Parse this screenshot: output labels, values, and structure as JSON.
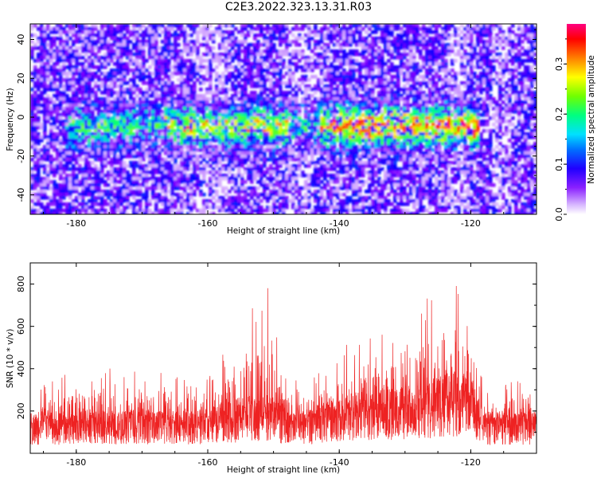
{
  "title": "C2E3.2022.323.13.31.R03",
  "chart_data": [
    {
      "type": "heatmap",
      "xlabel": "Height of straight line (km)",
      "ylabel": "Frequency (Hz)",
      "xlim": [
        -187,
        -110
      ],
      "ylim": [
        -50,
        48
      ],
      "x_ticks": [
        -180,
        -160,
        -140,
        -120
      ],
      "y_ticks": [
        -40,
        -20,
        0,
        20,
        40
      ],
      "colorbar": {
        "label": "Normalized spectral amplitude",
        "range": [
          0,
          0.38
        ],
        "ticks": [
          0.0,
          0.1,
          0.2,
          0.3
        ],
        "colormap": [
          "#ffffff",
          "#cc99ff",
          "#7f00ff",
          "#0000ff",
          "#00c8ff",
          "#00ff7f",
          "#7fff00",
          "#ffff00",
          "#ff8000",
          "#ff0000",
          "#ff0080"
        ]
      },
      "signal_band": {
        "frequency_center": -4,
        "height_range": [
          -182,
          -119
        ],
        "peak_amplitude": 0.38
      }
    },
    {
      "type": "line",
      "xlabel": "Height of straight line (km)",
      "ylabel": "SNR (10 * v/v)",
      "xlim": [
        -187,
        -110
      ],
      "ylim": [
        0,
        900
      ],
      "x_ticks": [
        -180,
        -160,
        -140,
        -120
      ],
      "y_ticks": [
        200,
        400,
        600,
        800
      ],
      "series_color": "#ee2222",
      "envelope": [
        {
          "x": -187,
          "baseline": 130,
          "peak": 300
        },
        {
          "x": -180,
          "baseline": 135,
          "peak": 400
        },
        {
          "x": -175,
          "baseline": 140,
          "peak": 420
        },
        {
          "x": -170,
          "baseline": 140,
          "peak": 380
        },
        {
          "x": -165,
          "baseline": 130,
          "peak": 380
        },
        {
          "x": -160,
          "baseline": 140,
          "peak": 380
        },
        {
          "x": -155,
          "baseline": 175,
          "peak": 630
        },
        {
          "x": -150.5,
          "baseline": 190,
          "peak": 815
        },
        {
          "x": -148,
          "baseline": 140,
          "peak": 400
        },
        {
          "x": -145,
          "baseline": 135,
          "peak": 350
        },
        {
          "x": -140,
          "baseline": 190,
          "peak": 500
        },
        {
          "x": -135,
          "baseline": 200,
          "peak": 560
        },
        {
          "x": -130,
          "baseline": 210,
          "peak": 650
        },
        {
          "x": -125,
          "baseline": 240,
          "peak": 810
        },
        {
          "x": -122.5,
          "baseline": 260,
          "peak": 895
        },
        {
          "x": -119.5,
          "baseline": 230,
          "peak": 600
        },
        {
          "x": -118,
          "baseline": 130,
          "peak": 300
        },
        {
          "x": -112,
          "baseline": 130,
          "peak": 400
        },
        {
          "x": -110,
          "baseline": 130,
          "peak": 300
        }
      ]
    }
  ]
}
